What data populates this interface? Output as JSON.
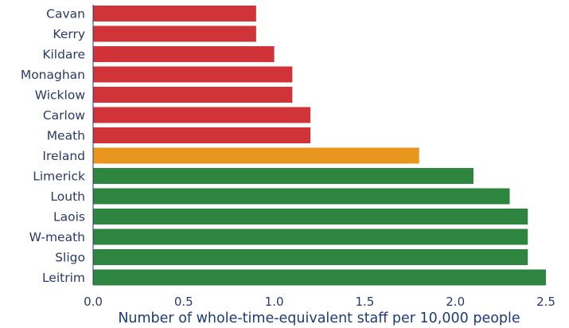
{
  "chart_data": {
    "type": "bar",
    "orientation": "horizontal",
    "categories": [
      "Cavan",
      "Kerry",
      "Kildare",
      "Monaghan",
      "Wicklow",
      "Carlow",
      "Meath",
      "Ireland",
      "Limerick",
      "Louth",
      "Laois",
      "W-meath",
      "Sligo",
      "Leitrim"
    ],
    "values": [
      0.9,
      0.9,
      1.0,
      1.1,
      1.1,
      1.2,
      1.2,
      1.8,
      2.1,
      2.3,
      2.4,
      2.4,
      2.4,
      2.5
    ],
    "bar_colors": [
      "#d03438",
      "#d03438",
      "#d03438",
      "#d03438",
      "#d03438",
      "#d03438",
      "#d03438",
      "#e9961f",
      "#2e8540",
      "#2e8540",
      "#2e8540",
      "#2e8540",
      "#2e8540",
      "#2e8540"
    ],
    "xlabel": "Number of  whole-time-equivalent staff per 10,000 people",
    "ylabel": "",
    "xlim": [
      0,
      2.5
    ],
    "xticks": [
      "0.0",
      "0.5",
      "1.0",
      "1.5",
      "2.0",
      "2.5"
    ],
    "grid": false,
    "legend": "none"
  },
  "colors": {
    "below_national": "#d03438",
    "national": "#e9961f",
    "above_national": "#2e8540",
    "text": "#2b3a66",
    "axis_title": "#1f3a7a"
  }
}
